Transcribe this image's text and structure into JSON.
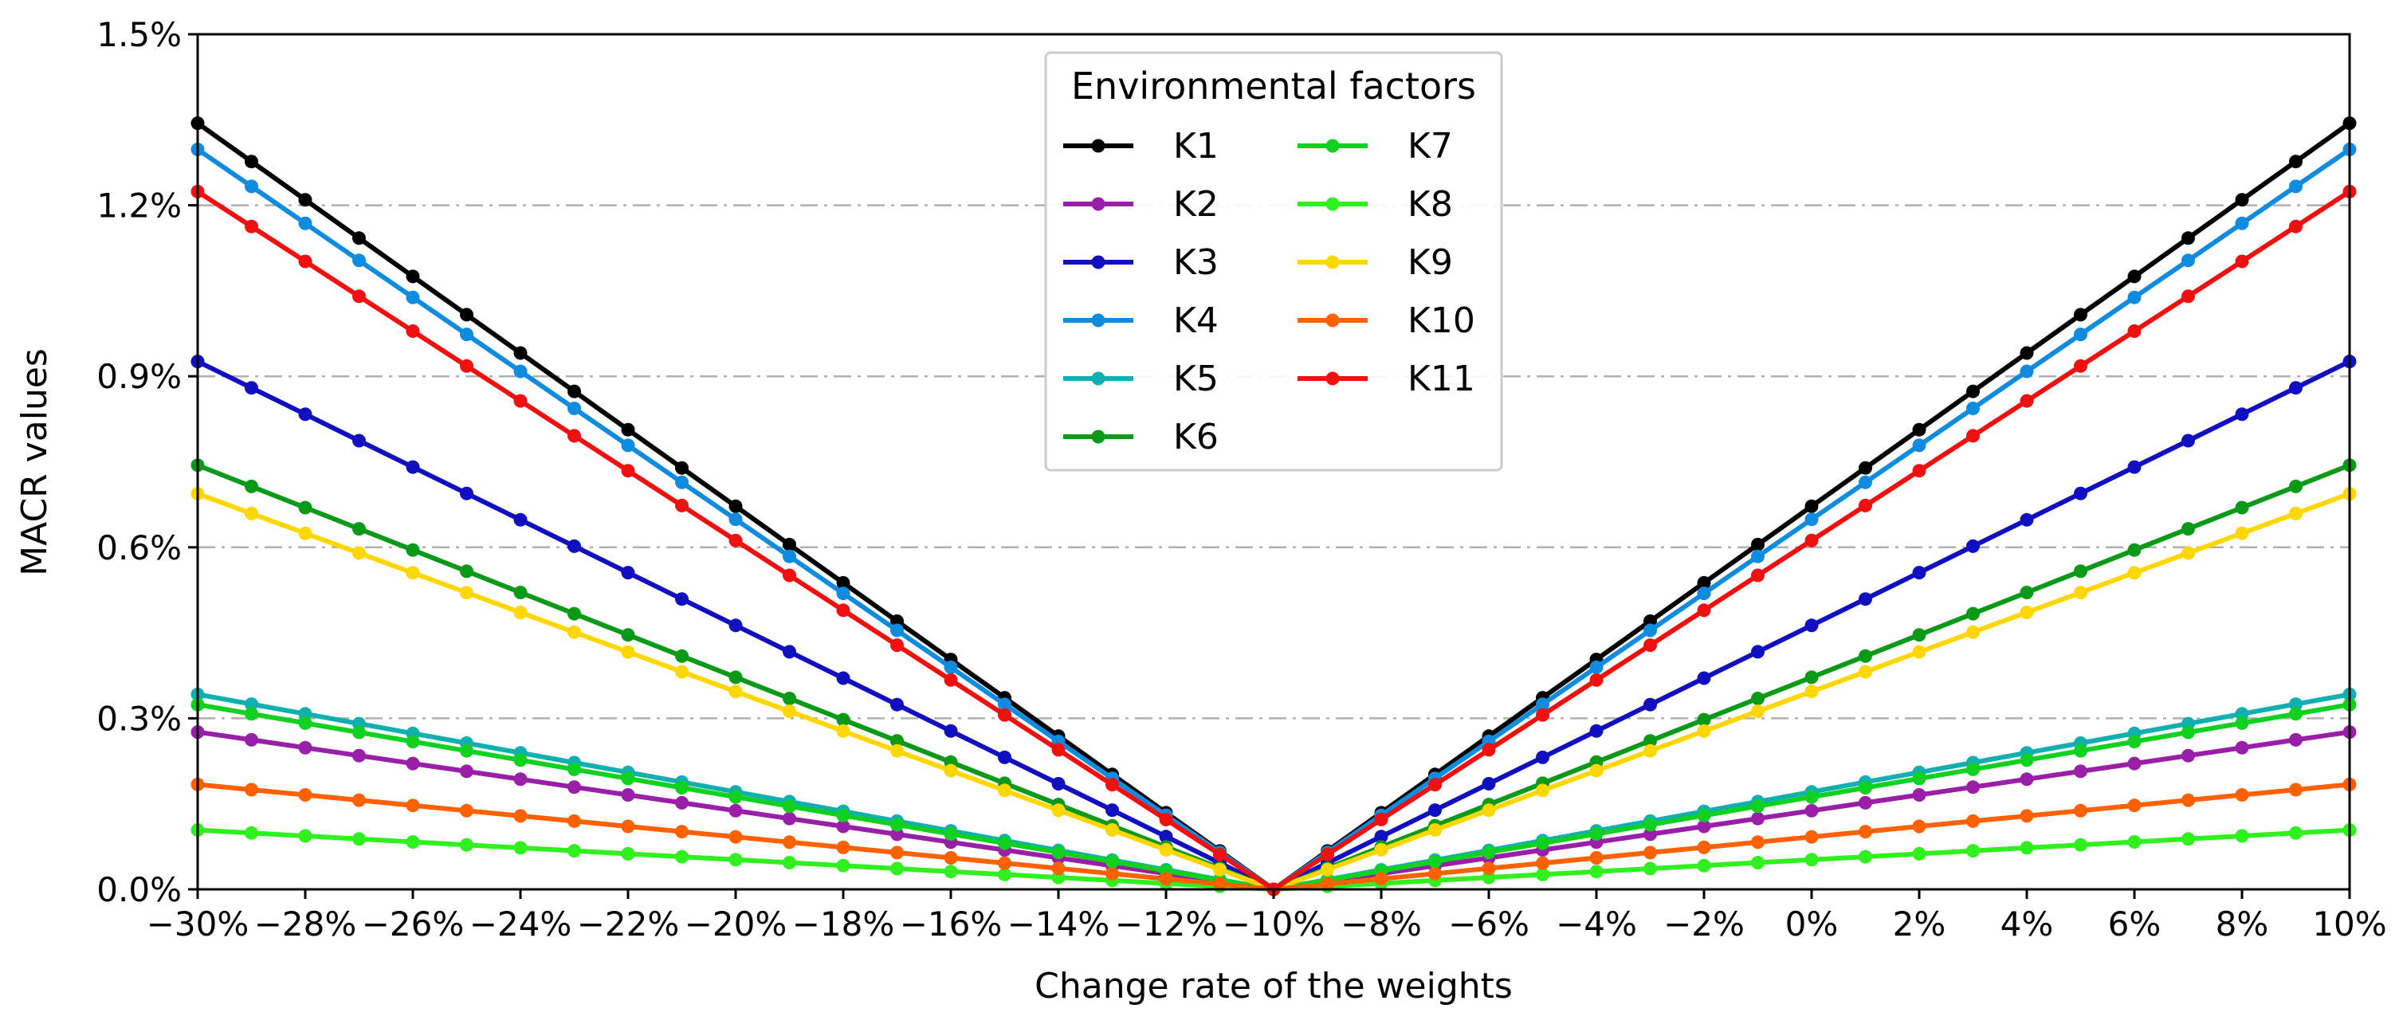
{
  "chart_data": {
    "type": "line",
    "xlabel": "Change rate of the weights",
    "ylabel": "MACR values",
    "x_range": [
      -30,
      10
    ],
    "x_unit": "%",
    "x_ticks": [
      "−30%",
      "−28%",
      "−26%",
      "−24%",
      "−22%",
      "−20%",
      "−18%",
      "−16%",
      "−14%",
      "−12%",
      "−10%",
      "−8%",
      "−6%",
      "−4%",
      "−2%",
      "0%",
      "2%",
      "4%",
      "6%",
      "8%",
      "10%"
    ],
    "y_range": [
      0,
      1.5
    ],
    "y_unit": "%",
    "y_ticks": [
      "0.0%",
      "0.3%",
      "0.6%",
      "0.9%",
      "1.2%",
      "1.5%"
    ],
    "grid": "horizontal dash-dot",
    "legend": {
      "title": "Environmental factors",
      "position": "top-center",
      "columns": 2
    },
    "series": [
      {
        "name": "K1",
        "color": "#000000",
        "slope": 0.0672
      },
      {
        "name": "K2",
        "color": "#9a1fa8",
        "slope": 0.0138
      },
      {
        "name": "K3",
        "color": "#1010c0",
        "slope": 0.0463
      },
      {
        "name": "K4",
        "color": "#0f8ce0",
        "slope": 0.0649
      },
      {
        "name": "K5",
        "color": "#10b0b0",
        "slope": 0.0171
      },
      {
        "name": "K6",
        "color": "#0a9a18",
        "slope": 0.0372
      },
      {
        "name": "K7",
        "color": "#10d020",
        "slope": 0.0162
      },
      {
        "name": "K8",
        "color": "#30f020",
        "slope": 0.0052
      },
      {
        "name": "K9",
        "color": "#ffd700",
        "slope": 0.0347
      },
      {
        "name": "K10",
        "color": "#ff6000",
        "slope": 0.0092
      },
      {
        "name": "K11",
        "color": "#f01010",
        "slope": 0.0612
      }
    ],
    "series_formula": "MACR = slope × |x − (−10)| for x = −30…10 step 1"
  }
}
